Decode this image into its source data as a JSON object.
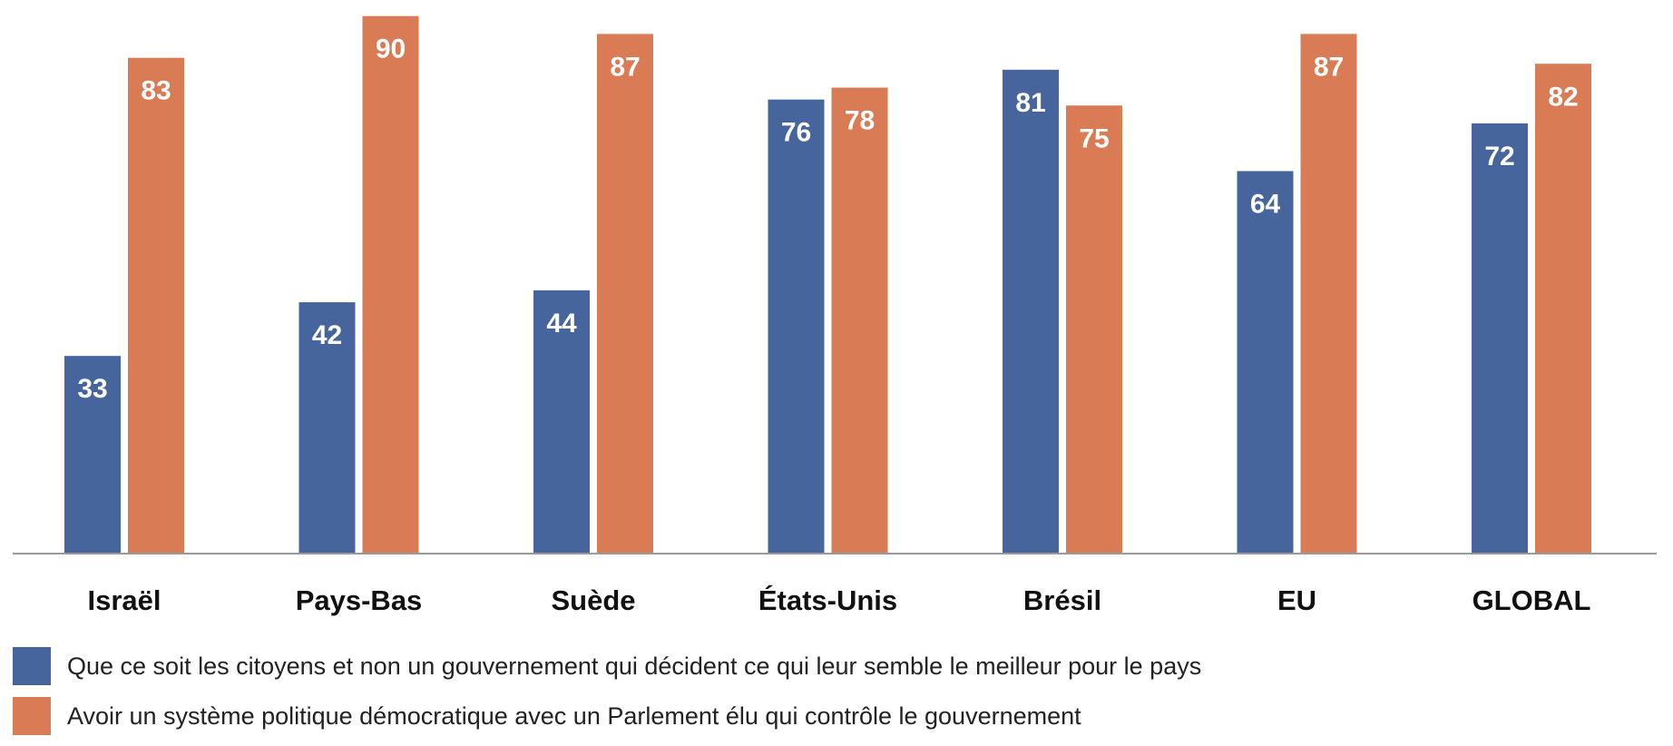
{
  "chart_data": {
    "type": "bar",
    "title": "",
    "xlabel": "",
    "ylabel": "",
    "ylim": [
      0,
      92
    ],
    "grid": false,
    "legend_position": "bottom-left",
    "categories": [
      "Israël",
      "Pays-Bas",
      "Suède",
      "États-Unis",
      "Brésil",
      "EU",
      "GLOBAL"
    ],
    "series": [
      {
        "name": "Que ce soit les citoyens et non un gouvernement qui décident ce qui leur semble le meilleur pour le pays",
        "color": "#46659c",
        "values": [
          33,
          42,
          44,
          76,
          81,
          64,
          72
        ]
      },
      {
        "name": "Avoir un système politique démocratique avec un Parlement élu qui contrôle le gouvernement",
        "color": "#d97b54",
        "values": [
          83,
          90,
          87,
          78,
          75,
          87,
          82
        ]
      }
    ]
  }
}
